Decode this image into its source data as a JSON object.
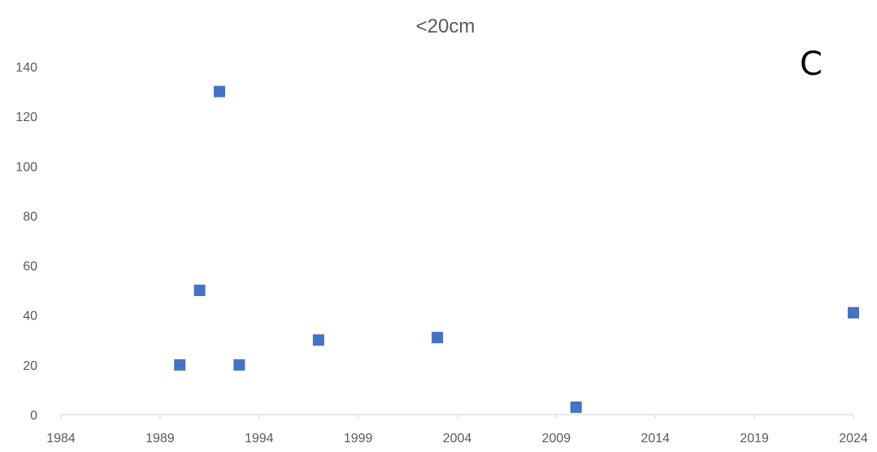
{
  "chart_data": {
    "type": "scatter",
    "title": "<20cm",
    "annotation": "C",
    "xlabel": "",
    "ylabel": "",
    "xlim": [
      1984,
      2024
    ],
    "ylim": [
      0,
      140
    ],
    "x_ticks": [
      "1984",
      "1989",
      "1994",
      "1999",
      "2004",
      "2009",
      "2014",
      "2019",
      "2024"
    ],
    "y_ticks": [
      "0",
      "20",
      "40",
      "60",
      "80",
      "100",
      "120",
      "140"
    ],
    "grid": false,
    "legend": "none",
    "marker": "square",
    "marker_color": "#4472C4",
    "axis_color": "#D9D9D9",
    "series": [
      {
        "points": [
          {
            "x": 1990,
            "y": 20
          },
          {
            "x": 1991,
            "y": 50
          },
          {
            "x": 1992,
            "y": 130
          },
          {
            "x": 1993,
            "y": 20
          },
          {
            "x": 1997,
            "y": 30
          },
          {
            "x": 2003,
            "y": 31
          },
          {
            "x": 2010,
            "y": 3
          },
          {
            "x": 2024,
            "y": 41
          }
        ]
      }
    ]
  }
}
